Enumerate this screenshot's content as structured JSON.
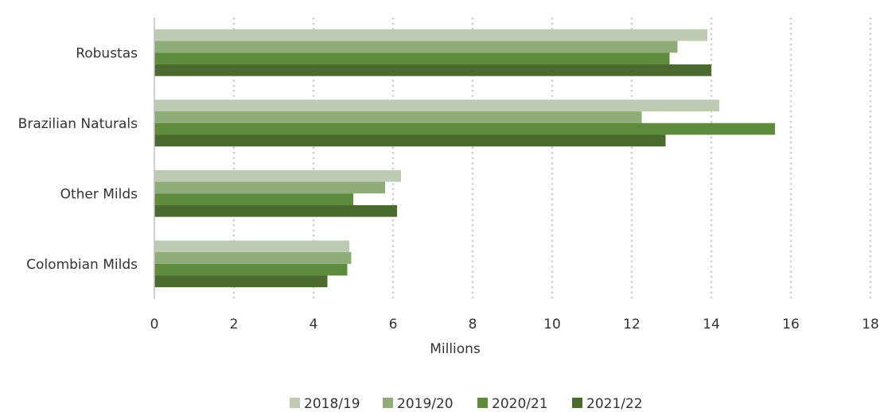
{
  "chart_data": {
    "type": "bar",
    "orientation": "horizontal",
    "categories": [
      "Robustas",
      "Brazilian Naturals",
      "Other Milds",
      "Colombian Milds"
    ],
    "series": [
      {
        "name": "2018/19",
        "color": "#bccbb2",
        "values": [
          13.9,
          14.2,
          6.2,
          4.9
        ]
      },
      {
        "name": "2019/20",
        "color": "#8fab78",
        "values": [
          13.15,
          12.25,
          5.8,
          4.95
        ]
      },
      {
        "name": "2020/21",
        "color": "#5e8a3c",
        "values": [
          12.95,
          15.6,
          5.0,
          4.85
        ]
      },
      {
        "name": "2021/22",
        "color": "#4a6b2d",
        "values": [
          14.0,
          12.85,
          6.1,
          4.35
        ]
      }
    ],
    "xlabel": "Millions",
    "xlim": [
      0,
      18
    ],
    "xticks": [
      "0",
      "2",
      "4",
      "6",
      "8",
      "10",
      "12",
      "14",
      "16",
      "18"
    ],
    "grid": "vertical-dotted",
    "legend_position": "bottom"
  }
}
